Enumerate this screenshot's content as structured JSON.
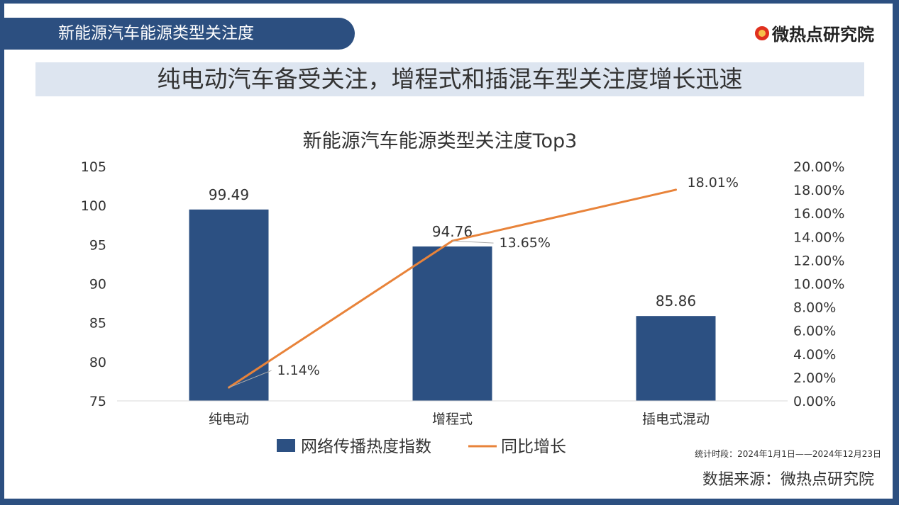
{
  "header": {
    "tab_title": "新能源汽车能源类型关注度",
    "logo_text": "微热点研究院",
    "headline": "纯电动汽车备受关注，增程式和插混车型关注度增长迅速"
  },
  "footer": {
    "period": "统计时段：2024年1月1日——2024年12月23日",
    "source": "数据来源：微热点研究院"
  },
  "colors": {
    "bar": "#2c5082",
    "line": "#e8833a",
    "frame": "#2c4f80"
  },
  "chart_data": {
    "type": "bar",
    "title": "新能源汽车能源类型关注度Top3",
    "categories": [
      "纯电动",
      "增程式",
      "插电式混动"
    ],
    "series": [
      {
        "name": "网络传播热度指数",
        "type": "bar",
        "axis": "left",
        "values": [
          99.49,
          94.76,
          85.86
        ],
        "labels": [
          "99.49",
          "94.76",
          "85.86"
        ]
      },
      {
        "name": "同比增长",
        "type": "line",
        "axis": "right",
        "values": [
          1.14,
          13.65,
          18.01
        ],
        "labels": [
          "1.14%",
          "13.65%",
          "18.01%"
        ]
      }
    ],
    "left_axis": {
      "ylim": [
        75,
        105
      ],
      "ticks": [
        "75",
        "80",
        "85",
        "90",
        "95",
        "100",
        "105"
      ]
    },
    "right_axis": {
      "ylim": [
        0,
        20
      ],
      "ticks": [
        "0.00%",
        "2.00%",
        "4.00%",
        "6.00%",
        "8.00%",
        "10.00%",
        "12.00%",
        "14.00%",
        "16.00%",
        "18.00%",
        "20.00%"
      ]
    },
    "legend": "bottom",
    "grid": false
  }
}
